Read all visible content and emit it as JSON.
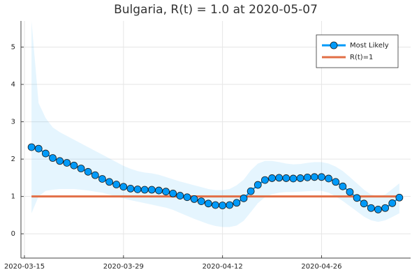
{
  "chart_data": {
    "type": "line",
    "title": "Bulgaria, R(t) = 1.0 at 2020-05-07",
    "x": [
      "2020-03-16",
      "2020-03-17",
      "2020-03-18",
      "2020-03-19",
      "2020-03-20",
      "2020-03-21",
      "2020-03-22",
      "2020-03-23",
      "2020-03-24",
      "2020-03-25",
      "2020-03-26",
      "2020-03-27",
      "2020-03-28",
      "2020-03-29",
      "2020-03-30",
      "2020-03-31",
      "2020-04-01",
      "2020-04-02",
      "2020-04-03",
      "2020-04-04",
      "2020-04-05",
      "2020-04-06",
      "2020-04-07",
      "2020-04-08",
      "2020-04-09",
      "2020-04-10",
      "2020-04-11",
      "2020-04-12",
      "2020-04-13",
      "2020-04-14",
      "2020-04-15",
      "2020-04-16",
      "2020-04-17",
      "2020-04-18",
      "2020-04-19",
      "2020-04-20",
      "2020-04-21",
      "2020-04-22",
      "2020-04-23",
      "2020-04-24",
      "2020-04-25",
      "2020-04-26",
      "2020-04-27",
      "2020-04-28",
      "2020-04-29",
      "2020-04-30",
      "2020-05-01",
      "2020-05-02",
      "2020-05-03",
      "2020-05-04",
      "2020-05-05",
      "2020-05-06",
      "2020-05-07"
    ],
    "series": [
      {
        "name": "Most Likely",
        "color": "#009af9",
        "values": [
          2.32,
          2.28,
          2.15,
          2.03,
          1.95,
          1.9,
          1.83,
          1.75,
          1.66,
          1.57,
          1.47,
          1.39,
          1.32,
          1.26,
          1.21,
          1.19,
          1.18,
          1.18,
          1.16,
          1.13,
          1.08,
          1.02,
          0.98,
          0.93,
          0.87,
          0.81,
          0.77,
          0.76,
          0.77,
          0.83,
          0.95,
          1.14,
          1.31,
          1.44,
          1.49,
          1.5,
          1.49,
          1.48,
          1.49,
          1.51,
          1.52,
          1.52,
          1.48,
          1.39,
          1.27,
          1.12,
          0.96,
          0.81,
          0.69,
          0.65,
          0.69,
          0.82,
          0.97
        ]
      }
    ],
    "band": {
      "color": "#009af9",
      "lower": [
        0.55,
        1.0,
        1.15,
        1.18,
        1.2,
        1.2,
        1.2,
        1.18,
        1.16,
        1.13,
        1.1,
        1.05,
        1.0,
        0.95,
        0.9,
        0.86,
        0.82,
        0.78,
        0.74,
        0.7,
        0.64,
        0.56,
        0.48,
        0.4,
        0.33,
        0.26,
        0.21,
        0.18,
        0.18,
        0.22,
        0.35,
        0.58,
        0.82,
        0.98,
        1.06,
        1.1,
        1.12,
        1.12,
        1.13,
        1.14,
        1.15,
        1.15,
        1.1,
        1.0,
        0.88,
        0.74,
        0.6,
        0.46,
        0.36,
        0.32,
        0.36,
        0.45,
        0.55
      ],
      "upper": [
        5.7,
        3.5,
        3.1,
        2.85,
        2.72,
        2.62,
        2.52,
        2.42,
        2.32,
        2.22,
        2.12,
        2.02,
        1.92,
        1.82,
        1.74,
        1.68,
        1.64,
        1.62,
        1.58,
        1.52,
        1.46,
        1.4,
        1.35,
        1.3,
        1.25,
        1.2,
        1.17,
        1.17,
        1.2,
        1.3,
        1.45,
        1.7,
        1.88,
        1.95,
        1.95,
        1.92,
        1.88,
        1.86,
        1.87,
        1.9,
        1.92,
        1.92,
        1.88,
        1.8,
        1.68,
        1.52,
        1.35,
        1.18,
        1.05,
        1.0,
        1.05,
        1.2,
        1.35
      ]
    },
    "reference_line": {
      "name": "R(t)=1",
      "value": 1,
      "color": "#e26f46"
    },
    "xlim": [
      "2020-03-15",
      "2020-05-08"
    ],
    "xticks": [
      "2020-03-15",
      "2020-03-29",
      "2020-04-12",
      "2020-04-26"
    ],
    "ylim": [
      -0.65,
      5.7
    ],
    "yticks": [
      0,
      1,
      2,
      3,
      4,
      5
    ],
    "grid": true,
    "legend": "top-right"
  }
}
